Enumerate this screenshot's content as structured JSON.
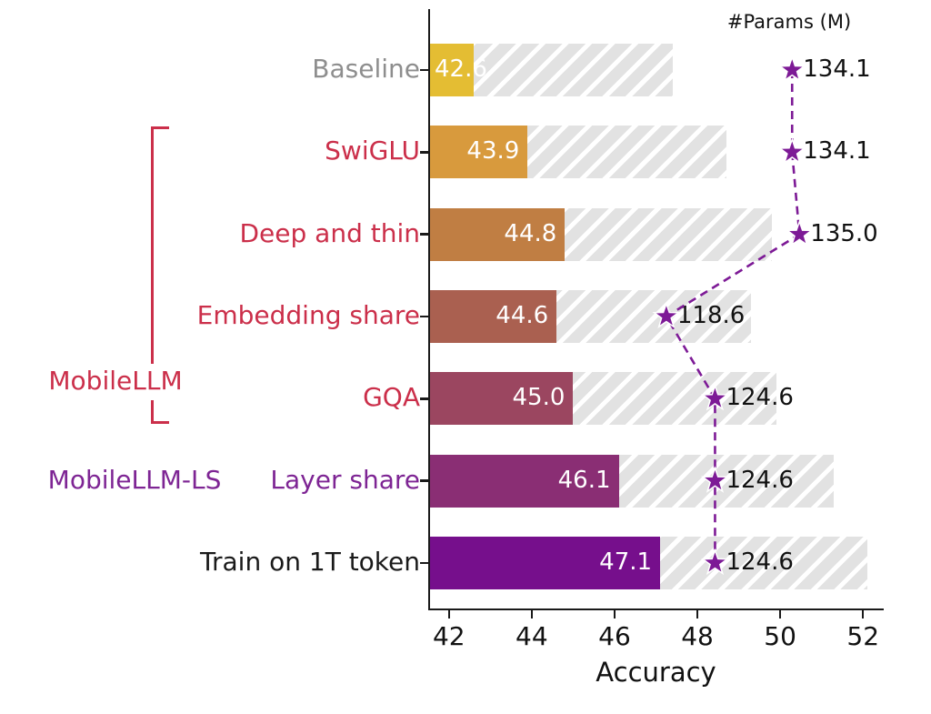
{
  "chart_data": {
    "type": "bar",
    "orientation": "horizontal",
    "xlabel": "Accuracy",
    "params_header": "#Params (M)",
    "xlim": [
      41.5,
      52.5
    ],
    "xticks": [
      42,
      44,
      46,
      48,
      50,
      52
    ],
    "grid": false,
    "legend_position": "none",
    "rows": [
      {
        "label": "Baseline",
        "label_color": "#8e8e8e",
        "accuracy": 42.6,
        "accuracy_label": "42.6",
        "hatched_reference": 47.4,
        "params": 134.1,
        "params_label": "134.1",
        "bar_color": "#e4bd33"
      },
      {
        "label": "SwiGLU",
        "label_color": "#cb2f4a",
        "accuracy": 43.9,
        "accuracy_label": "43.9",
        "hatched_reference": 48.7,
        "params": 134.1,
        "params_label": "134.1",
        "bar_color": "#d89a3d"
      },
      {
        "label": "Deep and thin",
        "label_color": "#cb2f4a",
        "accuracy": 44.8,
        "accuracy_label": "44.8",
        "hatched_reference": 49.8,
        "params": 135.0,
        "params_label": "135.0",
        "bar_color": "#c07e43"
      },
      {
        "label": "Embedding share",
        "label_color": "#cb2f4a",
        "accuracy": 44.6,
        "accuracy_label": "44.6",
        "hatched_reference": 49.3,
        "params": 118.6,
        "params_label": "118.6",
        "bar_color": "#aa6050"
      },
      {
        "label": "GQA",
        "label_color": "#cb2f4a",
        "accuracy": 45.0,
        "accuracy_label": "45.0",
        "hatched_reference": 49.9,
        "params": 124.6,
        "params_label": "124.6",
        "bar_color": "#9b4660"
      },
      {
        "label": "Layer share",
        "label_color": "#7e2594",
        "accuracy": 46.1,
        "accuracy_label": "46.1",
        "hatched_reference": 51.3,
        "params": 124.6,
        "params_label": "124.6",
        "bar_color": "#8a2e74"
      },
      {
        "label": "Train on 1T token",
        "label_color": "#1a1a1a",
        "accuracy": 47.1,
        "accuracy_label": "47.1",
        "hatched_reference": 52.1,
        "params": 124.6,
        "params_label": "124.6",
        "bar_color": "#760f8c"
      }
    ],
    "groups": [
      {
        "label": "MobileLLM",
        "color": "#cb2f4a",
        "first_row": 1,
        "last_row": 4,
        "has_bracket": true
      },
      {
        "label": "MobileLLM-LS",
        "color": "#7e2594",
        "first_row": 5,
        "last_row": 5,
        "has_bracket": false
      }
    ],
    "params_axis": {
      "ref_param": 118.6,
      "ref_acc": 47.25,
      "acc_per_param": 0.196
    },
    "star_color": "#7d1a96",
    "hatch_color": "#e2e2e2",
    "axis_color": "#1a1a1a"
  }
}
